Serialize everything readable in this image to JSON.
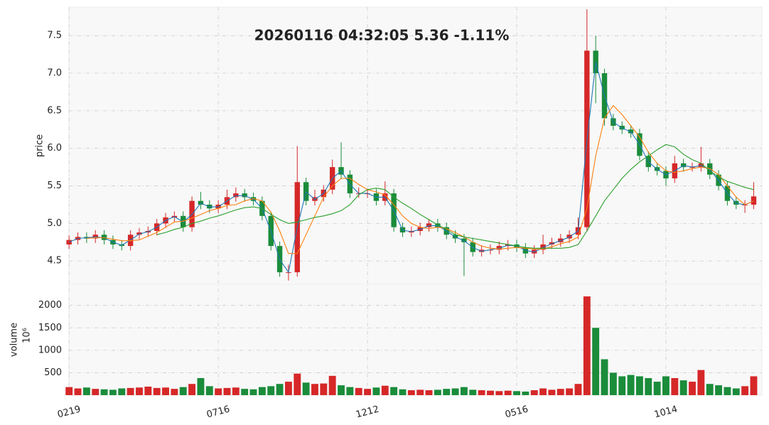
{
  "chart_data": {
    "type": "candlestick",
    "title": "20260116 04:32:05   5.36 -1.11%",
    "ylabel": "price",
    "volume_label": "volume",
    "volume_unit": "10⁶",
    "up_color": "#d62728",
    "down_color": "#1a8c3a",
    "grid": true,
    "categories": [
      "0219",
      null,
      null,
      null,
      null,
      null,
      null,
      null,
      null,
      null,
      null,
      null,
      null,
      null,
      null,
      null,
      null,
      "0716",
      null,
      null,
      null,
      null,
      null,
      null,
      null,
      null,
      null,
      null,
      null,
      null,
      null,
      null,
      null,
      null,
      "1212",
      null,
      null,
      null,
      null,
      null,
      null,
      null,
      null,
      null,
      null,
      null,
      null,
      null,
      null,
      null,
      null,
      "0516",
      null,
      null,
      null,
      null,
      null,
      null,
      null,
      null,
      null,
      null,
      null,
      null,
      null,
      null,
      null,
      null,
      "1014",
      null,
      null,
      null,
      null,
      null,
      null,
      null,
      null,
      null,
      null
    ],
    "open": [
      4.72,
      4.78,
      4.82,
      4.8,
      4.85,
      4.78,
      4.72,
      4.7,
      4.85,
      4.88,
      4.9,
      5.0,
      5.08,
      5.1,
      4.95,
      5.3,
      5.25,
      5.2,
      5.25,
      5.35,
      5.4,
      5.35,
      5.3,
      5.1,
      4.7,
      4.35,
      4.35,
      5.55,
      5.3,
      5.35,
      5.45,
      5.75,
      5.65,
      5.4,
      5.4,
      5.4,
      5.3,
      5.4,
      4.95,
      4.88,
      4.9,
      4.95,
      5.0,
      4.95,
      4.85,
      4.8,
      4.75,
      4.62,
      4.65,
      4.65,
      4.7,
      4.72,
      4.68,
      4.6,
      4.65,
      4.72,
      4.75,
      4.8,
      4.85,
      4.95,
      7.3,
      7.0,
      6.4,
      6.3,
      6.25,
      6.2,
      5.9,
      5.75,
      5.7,
      5.6,
      5.8,
      5.75,
      5.75,
      5.8,
      5.65,
      5.5,
      5.3,
      5.25,
      5.25
    ],
    "high": [
      4.84,
      4.88,
      4.88,
      4.91,
      4.91,
      4.84,
      4.78,
      4.91,
      4.94,
      4.96,
      5.06,
      5.14,
      5.16,
      5.16,
      5.36,
      5.42,
      5.31,
      5.31,
      5.45,
      5.48,
      5.46,
      5.41,
      5.36,
      5.16,
      4.76,
      4.45,
      6.03,
      5.61,
      5.45,
      5.51,
      5.85,
      6.08,
      5.71,
      5.48,
      5.46,
      5.46,
      5.56,
      5.46,
      5.01,
      4.96,
      5.01,
      5.06,
      5.06,
      5.01,
      4.91,
      4.86,
      4.81,
      4.71,
      4.72,
      4.76,
      4.78,
      4.78,
      4.74,
      4.71,
      4.85,
      4.81,
      4.86,
      4.91,
      5.08,
      7.85,
      7.5,
      7.06,
      6.46,
      6.36,
      6.31,
      6.26,
      5.96,
      5.81,
      5.76,
      5.9,
      5.86,
      5.81,
      6.02,
      5.86,
      5.71,
      5.56,
      5.36,
      5.31,
      5.55
    ],
    "low": [
      4.66,
      4.72,
      4.74,
      4.74,
      4.72,
      4.66,
      4.64,
      4.64,
      4.79,
      4.82,
      4.84,
      4.94,
      5.02,
      4.89,
      4.89,
      5.19,
      5.14,
      5.14,
      5.19,
      5.29,
      5.29,
      5.24,
      5.04,
      4.64,
      4.29,
      4.24,
      4.29,
      5.24,
      5.24,
      5.29,
      5.39,
      5.59,
      5.34,
      5.34,
      5.34,
      5.24,
      5.24,
      4.89,
      4.82,
      4.82,
      4.84,
      4.89,
      4.89,
      4.79,
      4.74,
      4.3,
      4.56,
      4.56,
      4.59,
      4.59,
      4.64,
      4.62,
      4.54,
      4.54,
      4.59,
      4.66,
      4.69,
      4.74,
      4.79,
      4.89,
      6.6,
      6.3,
      6.24,
      6.19,
      6.14,
      5.84,
      5.69,
      5.64,
      5.5,
      5.54,
      5.69,
      5.69,
      5.69,
      5.59,
      5.44,
      5.24,
      5.19,
      5.14,
      5.19
    ],
    "close": [
      4.78,
      4.82,
      4.8,
      4.85,
      4.78,
      4.72,
      4.7,
      4.85,
      4.88,
      4.9,
      5.0,
      5.08,
      5.1,
      4.95,
      5.3,
      5.25,
      5.2,
      5.25,
      5.35,
      5.4,
      5.35,
      5.3,
      5.1,
      4.7,
      4.35,
      4.35,
      5.55,
      5.3,
      5.35,
      5.45,
      5.75,
      5.65,
      5.4,
      5.4,
      5.4,
      5.3,
      5.4,
      4.95,
      4.88,
      4.9,
      4.95,
      5.0,
      4.95,
      4.85,
      4.8,
      4.75,
      4.62,
      4.65,
      4.65,
      4.7,
      4.72,
      4.68,
      4.6,
      4.65,
      4.72,
      4.75,
      4.8,
      4.85,
      4.95,
      7.3,
      7.0,
      6.4,
      6.3,
      6.25,
      6.2,
      5.9,
      5.75,
      5.7,
      5.6,
      5.8,
      5.75,
      5.75,
      5.8,
      5.65,
      5.5,
      5.3,
      5.25,
      5.25,
      5.36
    ],
    "volume": [
      180,
      150,
      170,
      140,
      130,
      120,
      150,
      160,
      170,
      190,
      160,
      170,
      140,
      180,
      250,
      380,
      200,
      150,
      160,
      170,
      140,
      130,
      180,
      200,
      250,
      300,
      480,
      280,
      250,
      260,
      430,
      220,
      180,
      160,
      140,
      170,
      210,
      180,
      130,
      110,
      120,
      110,
      120,
      140,
      150,
      180,
      120,
      110,
      100,
      90,
      100,
      90,
      80,
      110,
      150,
      120,
      140,
      150,
      250,
      2200,
      1500,
      800,
      500,
      420,
      450,
      420,
      380,
      300,
      420,
      380,
      330,
      300,
      560,
      250,
      220,
      180,
      150,
      200,
      420
    ],
    "series": [
      {
        "color": "#1f77b4",
        "values": [
          4.75,
          4.8,
          4.81,
          4.82,
          4.81,
          4.75,
          4.71,
          4.78,
          4.86,
          4.89,
          4.95,
          5.04,
          5.09,
          5.02,
          5.12,
          5.27,
          5.22,
          5.22,
          5.3,
          5.37,
          5.37,
          5.32,
          5.2,
          4.9,
          4.52,
          4.35,
          4.95,
          5.42,
          5.32,
          5.4,
          5.6,
          5.7,
          5.52,
          5.4,
          5.4,
          5.35,
          5.35,
          5.17,
          4.91,
          4.89,
          4.92,
          4.97,
          4.97,
          4.9,
          4.82,
          4.77,
          4.68,
          4.63,
          4.65,
          4.67,
          4.71,
          4.7,
          4.64,
          4.62,
          4.68,
          4.73,
          4.77,
          4.82,
          4.9,
          6.1,
          7.15,
          6.7,
          6.35,
          6.27,
          6.22,
          6.05,
          5.82,
          5.72,
          5.65,
          5.7,
          5.77,
          5.75,
          5.77,
          5.72,
          5.57,
          5.4,
          5.27,
          5.25,
          5.3
        ]
      },
      {
        "color": "#ff7f0e",
        "values": [
          null,
          null,
          4.8,
          4.81,
          4.81,
          4.79,
          4.77,
          4.77,
          4.78,
          4.83,
          4.88,
          4.95,
          5.02,
          5.03,
          5.07,
          5.12,
          5.17,
          5.2,
          5.24,
          5.25,
          5.3,
          5.33,
          5.3,
          5.15,
          4.9,
          4.6,
          4.6,
          4.85,
          5.1,
          5.35,
          5.5,
          5.6,
          5.6,
          5.52,
          5.45,
          5.42,
          5.38,
          5.25,
          5.1,
          5.0,
          4.95,
          4.93,
          4.95,
          4.93,
          4.88,
          4.82,
          4.75,
          4.7,
          4.67,
          4.66,
          4.67,
          4.68,
          4.67,
          4.66,
          4.66,
          4.69,
          4.73,
          4.76,
          4.82,
          5.2,
          5.9,
          6.4,
          6.57,
          6.45,
          6.3,
          6.15,
          5.95,
          5.8,
          5.7,
          5.68,
          5.7,
          5.73,
          5.75,
          5.73,
          5.65,
          5.5,
          5.35,
          5.25,
          5.3
        ]
      },
      {
        "color": "#2ca02c",
        "values": [
          null,
          null,
          null,
          null,
          null,
          null,
          null,
          null,
          null,
          null,
          4.85,
          4.88,
          4.92,
          4.95,
          5.0,
          5.03,
          5.07,
          5.1,
          5.14,
          5.18,
          5.21,
          5.22,
          5.2,
          5.12,
          5.05,
          5.0,
          5.02,
          5.05,
          5.08,
          5.1,
          5.13,
          5.17,
          5.25,
          5.38,
          5.45,
          5.47,
          5.45,
          5.35,
          5.27,
          5.2,
          5.12,
          5.05,
          4.98,
          4.92,
          4.85,
          4.82,
          4.8,
          4.78,
          4.76,
          4.74,
          4.72,
          4.7,
          4.68,
          4.67,
          4.67,
          4.67,
          4.67,
          4.68,
          4.72,
          4.9,
          5.1,
          5.3,
          5.45,
          5.6,
          5.72,
          5.82,
          5.9,
          5.98,
          6.05,
          6.02,
          5.92,
          5.85,
          5.8,
          5.7,
          5.62,
          5.56,
          5.52,
          5.48,
          5.45
        ]
      }
    ],
    "ylim": [
      4.19,
      7.88
    ],
    "yticks": [
      4.5,
      {
        "value": 5.0,
        "label": "5.0"
      },
      5.5,
      {
        "value": 6.0,
        "label": "6.0"
      },
      6.5,
      {
        "value": 7.0,
        "label": "7.0"
      },
      7.5
    ],
    "volume_ylim": [
      0,
      2470
    ],
    "volume_yticks": [
      500,
      1000,
      1500,
      2000
    ]
  }
}
